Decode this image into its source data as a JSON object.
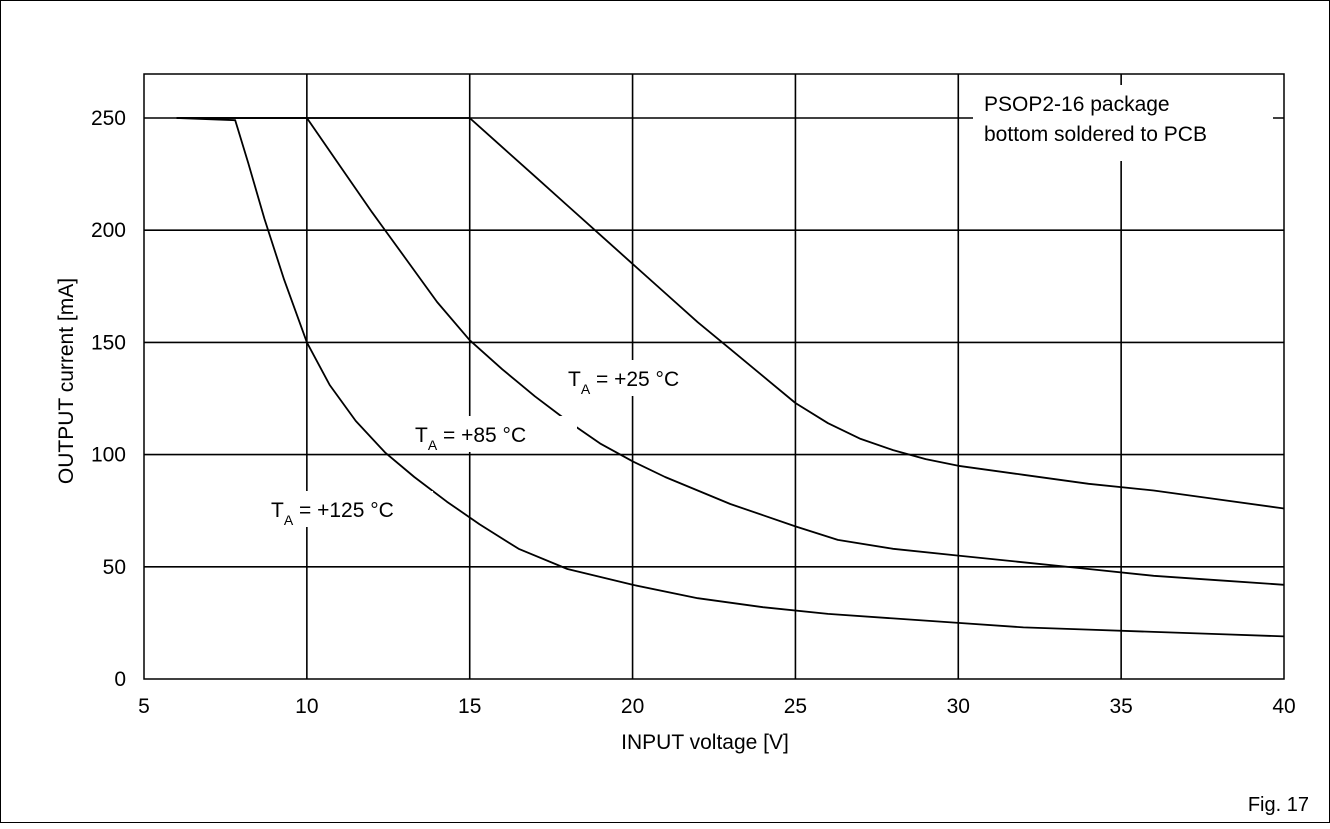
{
  "figure_label": "Fig. 17",
  "chart_data": {
    "type": "line",
    "title": "",
    "xlabel": "INPUT voltage [V]",
    "ylabel": "OUTPUT current [mA]",
    "xlim": [
      5,
      40
    ],
    "ylim": [
      0,
      270
    ],
    "xticks": [
      5,
      10,
      15,
      20,
      25,
      30,
      35,
      40
    ],
    "yticks": [
      0,
      50,
      100,
      150,
      200,
      250
    ],
    "grid": true,
    "annotation": [
      "PSOP2-16 package",
      "bottom soldered to PCB"
    ],
    "series": [
      {
        "name": "T_A = +25 °C",
        "label": {
          "prefix": "T",
          "sub": "A",
          "text": " = +25 °C"
        },
        "x": [
          6,
          15,
          16,
          17,
          18,
          19,
          20,
          21,
          22,
          23,
          24,
          25,
          26,
          27,
          28,
          29,
          30,
          32,
          34,
          36,
          38,
          40
        ],
        "y": [
          250,
          250,
          237,
          224,
          211,
          198,
          185,
          172,
          159,
          147,
          135,
          123,
          114,
          107,
          102,
          98,
          95,
          91,
          87,
          84,
          80,
          76
        ]
      },
      {
        "name": "T_A = +85 °C",
        "label": {
          "prefix": "T",
          "sub": "A",
          "text": " = +85 °C"
        },
        "x": [
          6,
          10,
          11,
          12,
          13,
          14,
          15,
          16,
          17,
          18,
          19,
          20,
          21,
          22,
          23,
          24,
          25,
          26.3,
          28,
          30,
          32,
          34,
          36,
          38,
          40
        ],
        "y": [
          250,
          250,
          229,
          208,
          188,
          168,
          151,
          138,
          126,
          115,
          105,
          97,
          90,
          84,
          78,
          73,
          68,
          62,
          58,
          55,
          52,
          49,
          46,
          44,
          42
        ]
      },
      {
        "name": "T_A = +125 °C",
        "label": {
          "prefix": "T",
          "sub": "A",
          "text": " = +125 °C"
        },
        "x": [
          6,
          7.8,
          8.2,
          8.7,
          9.3,
          10,
          10.7,
          11.5,
          12.4,
          13.3,
          14.3,
          15.3,
          16.5,
          18,
          20,
          22,
          24,
          26,
          28,
          30,
          32,
          34,
          36,
          38,
          40
        ],
        "y": [
          250,
          249,
          230,
          205,
          178,
          150,
          131,
          115,
          101,
          90,
          79,
          69,
          58,
          49,
          42,
          36,
          32,
          29,
          27,
          25,
          23,
          22,
          21,
          20,
          19
        ]
      }
    ]
  }
}
